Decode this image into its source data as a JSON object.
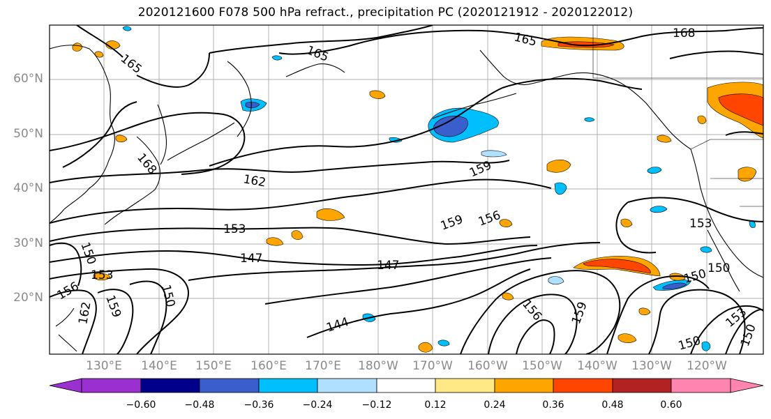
{
  "title": "2020121600 F078 500 hPa refract., precipitation PC (2020121912 - 2020122012)",
  "latitude_labels": [
    "60°N",
    "50°N",
    "40°N",
    "30°N",
    "20°N"
  ],
  "longitude_labels": [
    "130°E",
    "140°E",
    "150°E",
    "160°E",
    "170°E",
    "180°W",
    "170°W",
    "160°W",
    "150°W",
    "140°W",
    "130°W",
    "120°W"
  ],
  "contour_labels": [
    "165",
    "165",
    "165",
    "168",
    "168",
    "162",
    "159",
    "159",
    "156",
    "153",
    "153",
    "150",
    "150",
    "147",
    "147",
    "144",
    "153",
    "156",
    "159",
    "162",
    "150",
    "156",
    "159",
    "150",
    "150",
    "153",
    "150"
  ],
  "colorbar": {
    "ticks": [
      "−0.60",
      "−0.48",
      "−0.36",
      "−0.24",
      "−0.12",
      "0.12",
      "0.24",
      "0.36",
      "0.48",
      "0.60"
    ],
    "colors": [
      "#9b30d0",
      "#00008b",
      "#3a5fcd",
      "#00bfff",
      "#b0e0ff",
      "#ffffff",
      "#ffe885",
      "#ffa500",
      "#ff4500",
      "#b22222",
      "#ff85b0"
    ]
  },
  "map_colors": {
    "negative": "#00bfff",
    "negative_strong": "#3a5fcd",
    "positive": "#ffa500",
    "positive_strong": "#ff4500",
    "positive_weak": "#ffe885"
  }
}
